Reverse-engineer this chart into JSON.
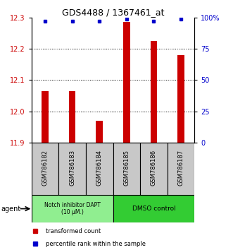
{
  "title": "GDS4488 / 1367461_at",
  "samples": [
    "GSM786182",
    "GSM786183",
    "GSM786184",
    "GSM786185",
    "GSM786186",
    "GSM786187"
  ],
  "red_values": [
    12.065,
    12.065,
    11.97,
    12.285,
    12.225,
    12.18
  ],
  "blue_values": [
    97,
    97,
    97,
    99,
    97,
    99
  ],
  "ylim_left": [
    11.9,
    12.3
  ],
  "ylim_right": [
    0,
    100
  ],
  "yticks_left": [
    11.9,
    12.0,
    12.1,
    12.2,
    12.3
  ],
  "yticks_right": [
    0,
    25,
    50,
    75,
    100
  ],
  "ytick_labels_right": [
    "0",
    "25",
    "50",
    "75",
    "100%"
  ],
  "group1_label": "Notch inhibitor DAPT\n(10 μM.)",
  "group2_label": "DMSO control",
  "group1_color": "#90EE90",
  "group2_color": "#33CC33",
  "bar_color": "#CC0000",
  "dot_color": "#0000CC",
  "legend_bar_label": "transformed count",
  "legend_dot_label": "percentile rank within the sample",
  "bar_width": 0.25,
  "x_positions": [
    1,
    2,
    3,
    4,
    5,
    6
  ],
  "grid_yticks": [
    12.0,
    12.1,
    12.2
  ],
  "agent_label": "agent"
}
